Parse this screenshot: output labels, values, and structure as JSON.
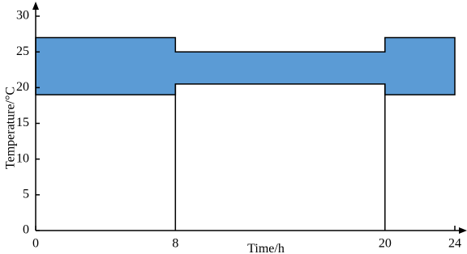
{
  "chart_data": {
    "type": "band",
    "x_label": "Time/h",
    "y_label": "Temperature/°C",
    "x": [
      0,
      8,
      8,
      20,
      20,
      24
    ],
    "upper": [
      27,
      27,
      25,
      25,
      27,
      27
    ],
    "lower": [
      19,
      19,
      20.5,
      20.5,
      19,
      19
    ],
    "color": "#5b9bd5",
    "xlim": [
      0,
      24
    ],
    "xticks": [
      0,
      8,
      20,
      24
    ],
    "ylim": [
      0,
      30
    ],
    "yticks": [
      0,
      5,
      10,
      15,
      20,
      25,
      30
    ]
  }
}
